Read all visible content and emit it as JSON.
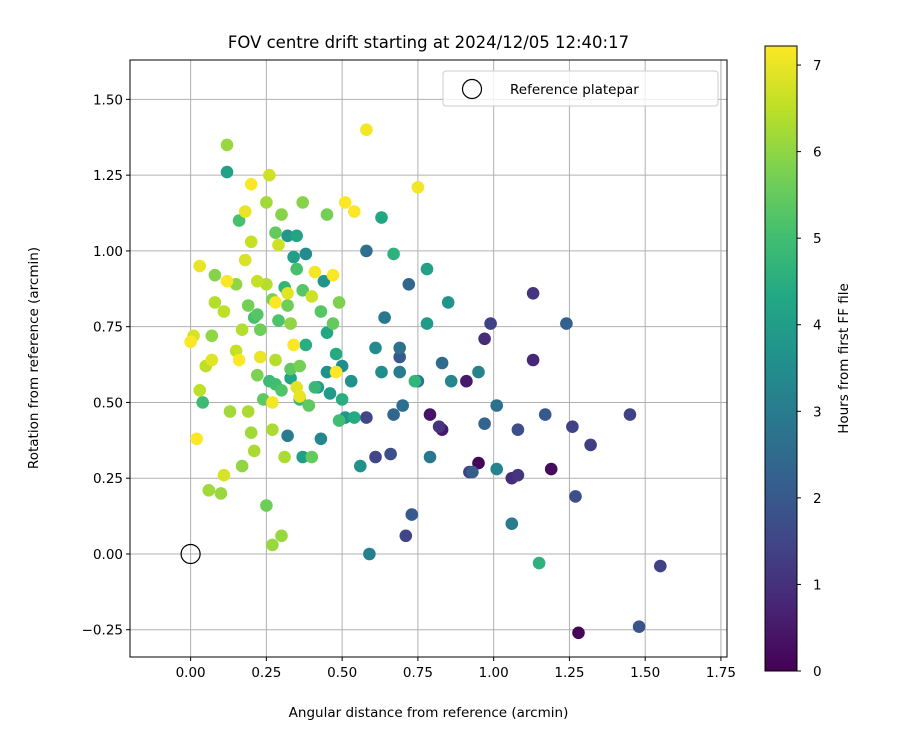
{
  "chart_data": {
    "type": "scatter",
    "title": "FOV centre drift starting at 2024/12/05 12:40:17",
    "xlabel": "Angular distance from reference (arcmin)",
    "ylabel": "Rotation from reference (arcmin)",
    "xlim": [
      -0.2,
      1.77
    ],
    "ylim": [
      -0.34,
      1.63
    ],
    "grid": true,
    "x_ticks": [
      0.0,
      0.25,
      0.5,
      0.75,
      1.0,
      1.25,
      1.5,
      1.75
    ],
    "x_tick_labels": [
      "0.00",
      "0.25",
      "0.50",
      "0.75",
      "1.00",
      "1.25",
      "1.50",
      "1.75"
    ],
    "y_ticks": [
      -0.25,
      0.0,
      0.25,
      0.5,
      0.75,
      1.0,
      1.25,
      1.5
    ],
    "y_tick_labels": [
      "−0.25",
      "0.00",
      "0.25",
      "0.50",
      "0.75",
      "1.00",
      "1.25",
      "1.50"
    ],
    "legend": {
      "position": "top-right",
      "entries": [
        {
          "label": "Reference platepar",
          "marker": "open-circle"
        }
      ]
    },
    "reference_point": {
      "x": 0.0,
      "y": 0.0
    },
    "colorbar": {
      "label": "Hours from first FF file",
      "min": 0,
      "max": 7.22,
      "ticks": [
        0,
        1,
        2,
        3,
        4,
        5,
        6,
        7
      ],
      "tick_labels": [
        "0",
        "1",
        "2",
        "3",
        "4",
        "5",
        "6",
        "7"
      ],
      "colormap": "viridis"
    },
    "series": [
      {
        "name": "FOV centre",
        "points": [
          {
            "x": 1.28,
            "y": -0.26,
            "h": 0.1
          },
          {
            "x": 0.95,
            "y": 0.3,
            "h": 0.1
          },
          {
            "x": 1.19,
            "y": 0.28,
            "h": 0.2
          },
          {
            "x": 0.79,
            "y": 0.46,
            "h": 0.4
          },
          {
            "x": 0.83,
            "y": 0.41,
            "h": 0.5
          },
          {
            "x": 0.91,
            "y": 0.57,
            "h": 0.5
          },
          {
            "x": 1.13,
            "y": 0.64,
            "h": 0.8
          },
          {
            "x": 0.97,
            "y": 0.71,
            "h": 0.9
          },
          {
            "x": 1.06,
            "y": 0.25,
            "h": 0.9
          },
          {
            "x": 1.13,
            "y": 0.86,
            "h": 1.1
          },
          {
            "x": 0.82,
            "y": 0.42,
            "h": 1.1
          },
          {
            "x": 1.08,
            "y": 0.26,
            "h": 1.1
          },
          {
            "x": 1.32,
            "y": 0.36,
            "h": 1.3
          },
          {
            "x": 0.92,
            "y": 0.27,
            "h": 1.3
          },
          {
            "x": 1.55,
            "y": -0.04,
            "h": 1.4
          },
          {
            "x": 1.45,
            "y": 0.46,
            "h": 1.4
          },
          {
            "x": 1.26,
            "y": 0.42,
            "h": 1.4
          },
          {
            "x": 0.99,
            "y": 0.76,
            "h": 1.4
          },
          {
            "x": 0.71,
            "y": 0.06,
            "h": 1.5
          },
          {
            "x": 0.61,
            "y": 0.32,
            "h": 1.5
          },
          {
            "x": 0.58,
            "y": 0.45,
            "h": 1.5
          },
          {
            "x": 1.27,
            "y": 0.19,
            "h": 1.7
          },
          {
            "x": 1.08,
            "y": 0.41,
            "h": 1.7
          },
          {
            "x": 0.66,
            "y": 0.33,
            "h": 1.7
          },
          {
            "x": 1.48,
            "y": -0.24,
            "h": 1.9
          },
          {
            "x": 0.73,
            "y": 0.13,
            "h": 2.0
          },
          {
            "x": 1.17,
            "y": 0.46,
            "h": 2.0
          },
          {
            "x": 0.69,
            "y": 0.65,
            "h": 2.0
          },
          {
            "x": 0.93,
            "y": 0.27,
            "h": 2.1
          },
          {
            "x": 1.24,
            "y": 0.76,
            "h": 2.2
          },
          {
            "x": 0.97,
            "y": 0.43,
            "h": 2.3
          },
          {
            "x": 0.72,
            "y": 0.89,
            "h": 2.4
          },
          {
            "x": 0.67,
            "y": 0.46,
            "h": 2.4
          },
          {
            "x": 0.83,
            "y": 0.63,
            "h": 2.5
          },
          {
            "x": 0.58,
            "y": 1.0,
            "h": 2.6
          },
          {
            "x": 0.7,
            "y": 0.49,
            "h": 2.6
          },
          {
            "x": 0.69,
            "y": 0.68,
            "h": 2.7
          },
          {
            "x": 1.01,
            "y": 0.49,
            "h": 2.7
          },
          {
            "x": 0.75,
            "y": 0.57,
            "h": 2.8
          },
          {
            "x": 0.64,
            "y": 0.78,
            "h": 2.9
          },
          {
            "x": 0.79,
            "y": 0.32,
            "h": 2.9
          },
          {
            "x": 1.06,
            "y": 0.1,
            "h": 3.0
          },
          {
            "x": 0.69,
            "y": 0.6,
            "h": 3.0
          },
          {
            "x": 0.32,
            "y": 0.39,
            "h": 3.0
          },
          {
            "x": 0.59,
            "y": 0.0,
            "h": 3.1
          },
          {
            "x": 0.95,
            "y": 0.6,
            "h": 3.2
          },
          {
            "x": 1.01,
            "y": 0.28,
            "h": 3.2
          },
          {
            "x": 0.86,
            "y": 0.57,
            "h": 3.3
          },
          {
            "x": 0.43,
            "y": 0.38,
            "h": 3.3
          },
          {
            "x": 0.38,
            "y": 0.99,
            "h": 3.4
          },
          {
            "x": 0.61,
            "y": 0.68,
            "h": 3.4
          },
          {
            "x": 0.5,
            "y": 0.62,
            "h": 3.5
          },
          {
            "x": 0.63,
            "y": 0.6,
            "h": 3.5
          },
          {
            "x": 0.53,
            "y": 0.57,
            "h": 3.6
          },
          {
            "x": 0.45,
            "y": 0.6,
            "h": 3.6
          },
          {
            "x": 0.56,
            "y": 0.29,
            "h": 3.6
          },
          {
            "x": 0.44,
            "y": 0.9,
            "h": 3.7
          },
          {
            "x": 0.85,
            "y": 0.83,
            "h": 3.7
          },
          {
            "x": 0.51,
            "y": 0.45,
            "h": 3.8
          },
          {
            "x": 0.32,
            "y": 1.05,
            "h": 3.8
          },
          {
            "x": 0.42,
            "y": 0.55,
            "h": 3.9
          },
          {
            "x": 0.78,
            "y": 0.76,
            "h": 3.9
          },
          {
            "x": 0.46,
            "y": 0.53,
            "h": 3.9
          },
          {
            "x": 0.37,
            "y": 0.32,
            "h": 4.0
          },
          {
            "x": 0.34,
            "y": 0.98,
            "h": 4.0
          },
          {
            "x": 0.78,
            "y": 0.94,
            "h": 4.1
          },
          {
            "x": 0.12,
            "y": 1.26,
            "h": 4.1
          },
          {
            "x": 0.35,
            "y": 1.05,
            "h": 4.2
          },
          {
            "x": 0.33,
            "y": 0.58,
            "h": 4.2
          },
          {
            "x": 0.45,
            "y": 0.73,
            "h": 4.3
          },
          {
            "x": 0.63,
            "y": 1.11,
            "h": 4.3
          },
          {
            "x": 0.48,
            "y": 0.66,
            "h": 4.4
          },
          {
            "x": 0.54,
            "y": 0.45,
            "h": 4.4
          },
          {
            "x": 0.38,
            "y": 0.69,
            "h": 4.5
          },
          {
            "x": 0.5,
            "y": 0.51,
            "h": 4.5
          },
          {
            "x": 0.67,
            "y": 0.99,
            "h": 4.6
          },
          {
            "x": 1.15,
            "y": -0.03,
            "h": 4.6
          },
          {
            "x": 0.31,
            "y": 0.88,
            "h": 4.7
          },
          {
            "x": 0.74,
            "y": 0.57,
            "h": 4.7
          },
          {
            "x": 0.36,
            "y": 0.51,
            "h": 4.8
          },
          {
            "x": 0.41,
            "y": 0.55,
            "h": 4.8
          },
          {
            "x": 0.04,
            "y": 0.5,
            "h": 4.9
          },
          {
            "x": 0.26,
            "y": 0.57,
            "h": 4.9
          },
          {
            "x": 0.49,
            "y": 0.44,
            "h": 5.0
          },
          {
            "x": 0.28,
            "y": 0.56,
            "h": 5.0
          },
          {
            "x": 0.35,
            "y": 0.94,
            "h": 5.1
          },
          {
            "x": 0.16,
            "y": 1.1,
            "h": 5.1
          },
          {
            "x": 0.21,
            "y": 0.78,
            "h": 5.1
          },
          {
            "x": 0.3,
            "y": 0.54,
            "h": 5.2
          },
          {
            "x": 0.29,
            "y": 0.77,
            "h": 5.2
          },
          {
            "x": 0.43,
            "y": 0.8,
            "h": 5.3
          },
          {
            "x": 0.22,
            "y": 0.79,
            "h": 5.3
          },
          {
            "x": 0.37,
            "y": 0.87,
            "h": 5.3
          },
          {
            "x": 0.24,
            "y": 0.51,
            "h": 5.4
          },
          {
            "x": 0.33,
            "y": 0.61,
            "h": 5.4
          },
          {
            "x": 0.39,
            "y": 0.49,
            "h": 5.4
          },
          {
            "x": 0.47,
            "y": 0.76,
            "h": 5.5
          },
          {
            "x": 0.4,
            "y": 0.32,
            "h": 5.5
          },
          {
            "x": 0.28,
            "y": 1.06,
            "h": 5.5
          },
          {
            "x": 0.32,
            "y": 0.82,
            "h": 5.6
          },
          {
            "x": 0.25,
            "y": 0.16,
            "h": 5.6
          },
          {
            "x": 0.23,
            "y": 0.74,
            "h": 5.6
          },
          {
            "x": 0.19,
            "y": 0.82,
            "h": 5.7
          },
          {
            "x": 0.45,
            "y": 1.12,
            "h": 5.7
          },
          {
            "x": 0.36,
            "y": 0.62,
            "h": 5.7
          },
          {
            "x": 0.27,
            "y": 0.84,
            "h": 5.8
          },
          {
            "x": 0.22,
            "y": 0.59,
            "h": 5.8
          },
          {
            "x": 0.49,
            "y": 0.83,
            "h": 5.8
          },
          {
            "x": 0.37,
            "y": 1.16,
            "h": 5.9
          },
          {
            "x": 0.3,
            "y": 1.12,
            "h": 5.9
          },
          {
            "x": 0.08,
            "y": 0.92,
            "h": 5.9
          },
          {
            "x": 0.15,
            "y": 0.89,
            "h": 6.0
          },
          {
            "x": 0.33,
            "y": 0.76,
            "h": 6.0
          },
          {
            "x": 0.07,
            "y": 0.72,
            "h": 6.0
          },
          {
            "x": 0.17,
            "y": 0.29,
            "h": 6.0
          },
          {
            "x": 0.1,
            "y": 0.2,
            "h": 6.1
          },
          {
            "x": 0.27,
            "y": 0.03,
            "h": 6.1
          },
          {
            "x": 0.3,
            "y": 0.06,
            "h": 6.1
          },
          {
            "x": 0.12,
            "y": 1.35,
            "h": 6.1
          },
          {
            "x": 0.25,
            "y": 1.16,
            "h": 6.2
          },
          {
            "x": 0.06,
            "y": 0.21,
            "h": 6.2
          },
          {
            "x": 0.13,
            "y": 0.47,
            "h": 6.2
          },
          {
            "x": 0.2,
            "y": 0.4,
            "h": 6.2
          },
          {
            "x": 0.31,
            "y": 0.32,
            "h": 6.3
          },
          {
            "x": 0.27,
            "y": 0.41,
            "h": 6.3
          },
          {
            "x": 0.19,
            "y": 0.47,
            "h": 6.3
          },
          {
            "x": 0.21,
            "y": 0.34,
            "h": 6.3
          },
          {
            "x": 0.28,
            "y": 0.64,
            "h": 6.4
          },
          {
            "x": 0.17,
            "y": 0.74,
            "h": 6.4
          },
          {
            "x": 0.25,
            "y": 0.89,
            "h": 6.4
          },
          {
            "x": 0.08,
            "y": 0.83,
            "h": 6.4
          },
          {
            "x": 0.05,
            "y": 0.62,
            "h": 6.5
          },
          {
            "x": 0.03,
            "y": 0.54,
            "h": 6.5
          },
          {
            "x": 0.11,
            "y": 0.8,
            "h": 6.5
          },
          {
            "x": 0.15,
            "y": 0.67,
            "h": 6.6
          },
          {
            "x": 0.2,
            "y": 1.03,
            "h": 6.6
          },
          {
            "x": 0.22,
            "y": 0.9,
            "h": 6.6
          },
          {
            "x": 0.4,
            "y": 0.85,
            "h": 6.7
          },
          {
            "x": 0.26,
            "y": 1.25,
            "h": 6.7
          },
          {
            "x": 0.29,
            "y": 1.02,
            "h": 6.7
          },
          {
            "x": 0.11,
            "y": 0.26,
            "h": 6.8
          },
          {
            "x": 0.01,
            "y": 0.72,
            "h": 6.8
          },
          {
            "x": 0.18,
            "y": 0.97,
            "h": 6.8
          },
          {
            "x": 0.35,
            "y": 0.55,
            "h": 6.9
          },
          {
            "x": 0.32,
            "y": 0.86,
            "h": 6.9
          },
          {
            "x": 0.07,
            "y": 0.64,
            "h": 6.9
          },
          {
            "x": 0.23,
            "y": 0.65,
            "h": 7.0
          },
          {
            "x": 0.03,
            "y": 0.95,
            "h": 7.0
          },
          {
            "x": 0.18,
            "y": 1.13,
            "h": 7.0
          },
          {
            "x": 0.36,
            "y": 0.52,
            "h": 7.0
          },
          {
            "x": 0.27,
            "y": 0.5,
            "h": 7.1
          },
          {
            "x": 0.41,
            "y": 0.93,
            "h": 7.1
          },
          {
            "x": 0.58,
            "y": 1.4,
            "h": 7.1
          },
          {
            "x": 0.75,
            "y": 1.21,
            "h": 7.1
          },
          {
            "x": 0.51,
            "y": 1.16,
            "h": 7.2
          },
          {
            "x": 0.54,
            "y": 1.13,
            "h": 7.2
          },
          {
            "x": 0.02,
            "y": 0.38,
            "h": 7.2
          },
          {
            "x": 0.0,
            "y": 0.7,
            "h": 7.2
          },
          {
            "x": 0.2,
            "y": 1.22,
            "h": 7.2
          },
          {
            "x": 0.16,
            "y": 0.64,
            "h": 7.2
          },
          {
            "x": 0.48,
            "y": 0.6,
            "h": 7.2
          },
          {
            "x": 0.28,
            "y": 0.83,
            "h": 7.2
          },
          {
            "x": 0.34,
            "y": 0.69,
            "h": 7.2
          },
          {
            "x": 0.47,
            "y": 0.92,
            "h": 7.2
          },
          {
            "x": 0.12,
            "y": 0.9,
            "h": 7.2
          }
        ]
      }
    ]
  }
}
